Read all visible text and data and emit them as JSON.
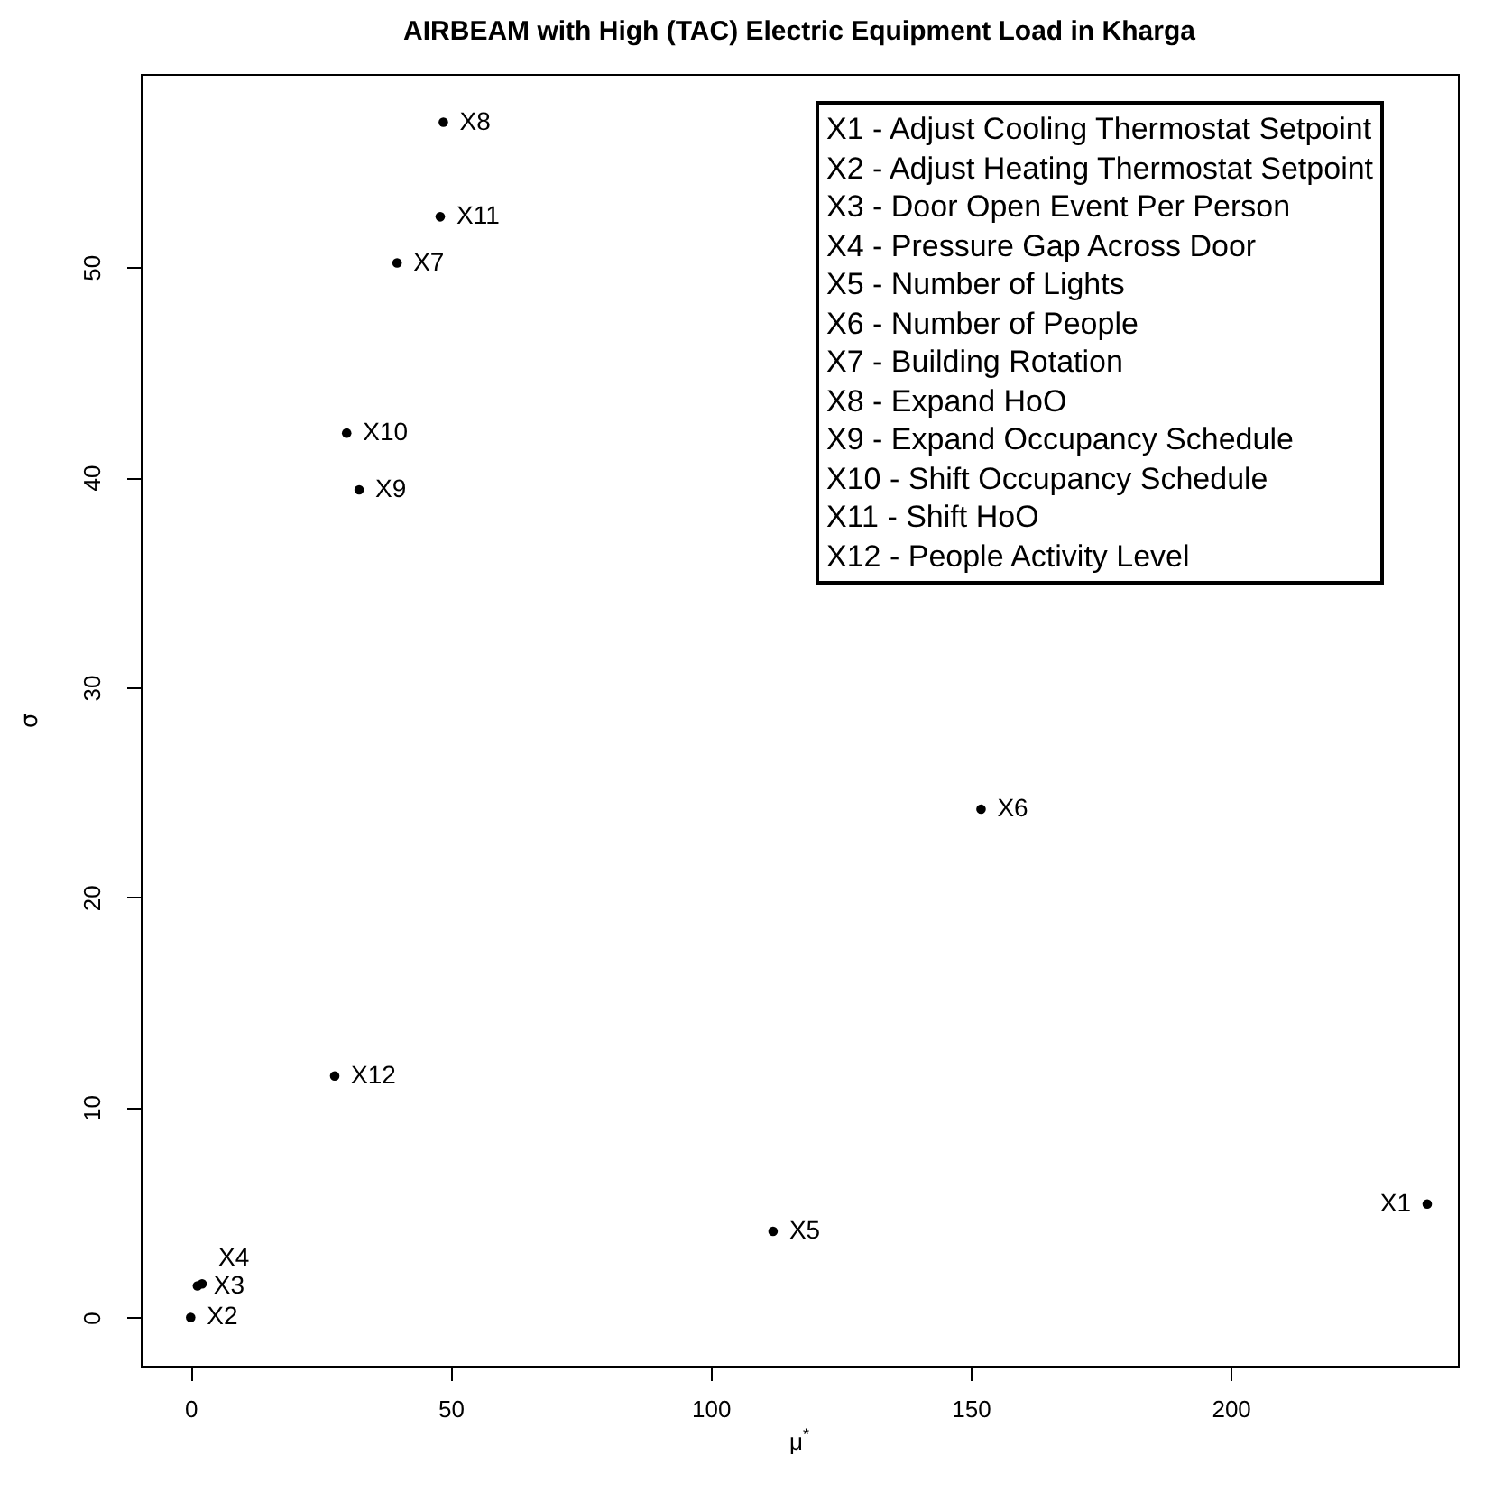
{
  "chart_data": {
    "type": "scatter",
    "title": "AIRBEAM with High (TAC) Electric Equipment Load in Kharga",
    "xlabel": "μ$^{*}$",
    "ylabel": "σ",
    "x": [
      237.8,
      0,
      1.3,
      2.2,
      112,
      152,
      39.7,
      48.6,
      32.4,
      30.0,
      48.0,
      27.7
    ],
    "values": [
      5.4,
      0,
      1.5,
      1.6,
      4.1,
      24.2,
      50.2,
      56.9,
      39.4,
      42.1,
      52.4,
      11.5
    ],
    "color": "#000000",
    "marker": "circle",
    "grid": false,
    "xlim": [
      -9.6,
      243.7
    ],
    "xticks": [
      0,
      50,
      100,
      150,
      200
    ],
    "ylim": [
      -2.3,
      59.2
    ],
    "yticks": [
      0,
      10,
      20,
      30,
      40,
      50
    ],
    "annotations": [
      "X1 - Adjust Cooling Thermostat Setpoint",
      "X2 - Adjust Heating Thermostat Setpoint",
      "X3 - Door Open Event Per Person",
      "X4 - Pressure Gap Across Door",
      "X5 - Number of Lights",
      "X6 - Number of People",
      "X7 - Building Rotation",
      "X8 - Expand HoO",
      "X9 - Expand Occupancy Schedule",
      "X10 - Shift Occupancy Schedule",
      "X11 - Shift HoO",
      "X12 - People Activity Level",
      {
        "text": "X1",
        "x": 237.8,
        "y": 5.4
      },
      {
        "text": "X2",
        "x": 0,
        "y": 0
      },
      {
        "text": "X3",
        "x": 1.3,
        "y": 1.5
      },
      {
        "text": "X4",
        "x": 2.2,
        "y": 1.6
      },
      {
        "text": "X5",
        "x": 112,
        "y": 4.1
      },
      {
        "text": "X6",
        "x": 152,
        "y": 24.2
      },
      {
        "text": "X7",
        "x": 39.7,
        "y": 50.2
      },
      {
        "text": "X8",
        "x": 48.6,
        "y": 56.9
      },
      {
        "text": "X9",
        "x": 32.4,
        "y": 39.4
      },
      {
        "text": "X10",
        "x": 30.0,
        "y": 42.1
      },
      {
        "text": "X11",
        "x": 48.0,
        "y": 52.4
      },
      {
        "text": "X12",
        "x": 27.7,
        "y": 11.5
      }
    ]
  }
}
